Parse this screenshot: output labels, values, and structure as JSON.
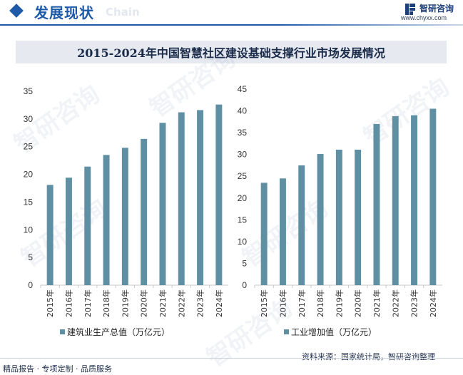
{
  "header": {
    "title": "发展现状",
    "watermark_en": "Chain",
    "brand_name": "智研咨询",
    "brand_url": "www.chyxx.com",
    "accent_color": "#1f5aa8"
  },
  "title": "2015-2024年中国智慧社区建设基础支撑行业市场发展情况",
  "watermarks": [
    "智研咨询",
    "智研咨询",
    "智研咨询",
    "智研咨询",
    "智研咨询",
    "智研咨询"
  ],
  "chart_data": [
    {
      "type": "bar",
      "categories": [
        "2015年",
        "2016年",
        "2017年",
        "2018年",
        "2019年",
        "2020年",
        "2021年",
        "2022年",
        "2023年",
        "2024年"
      ],
      "series": [
        {
          "name": "建筑业生产总值（万亿元）",
          "values": [
            18.1,
            19.4,
            21.4,
            23.5,
            24.8,
            26.4,
            29.3,
            31.2,
            31.6,
            32.6
          ]
        }
      ],
      "ylim": [
        0,
        35
      ],
      "yticks": [
        0,
        5,
        10,
        15,
        20,
        25,
        30,
        35
      ],
      "color": "#5e8fa2",
      "legend": "bottom-left"
    },
    {
      "type": "bar",
      "categories": [
        "2015年",
        "2016年",
        "2017年",
        "2018年",
        "2019年",
        "2020年",
        "2021年",
        "2022年",
        "2023年",
        "2024年"
      ],
      "series": [
        {
          "name": "工业增加值（万亿元）",
          "values": [
            23.5,
            24.5,
            27.5,
            30.1,
            31.1,
            31.1,
            37.0,
            38.8,
            39.0,
            40.5
          ]
        }
      ],
      "ylim": [
        0,
        45
      ],
      "yticks": [
        0,
        5,
        10,
        15,
        20,
        25,
        30,
        35,
        40,
        45
      ],
      "color": "#5e8fa2",
      "legend": "bottom-left"
    }
  ],
  "footer": {
    "left": "精品报告 · 专项定制 · 品质服务",
    "right": "资料来源：国家统计局，智研咨询整理"
  }
}
